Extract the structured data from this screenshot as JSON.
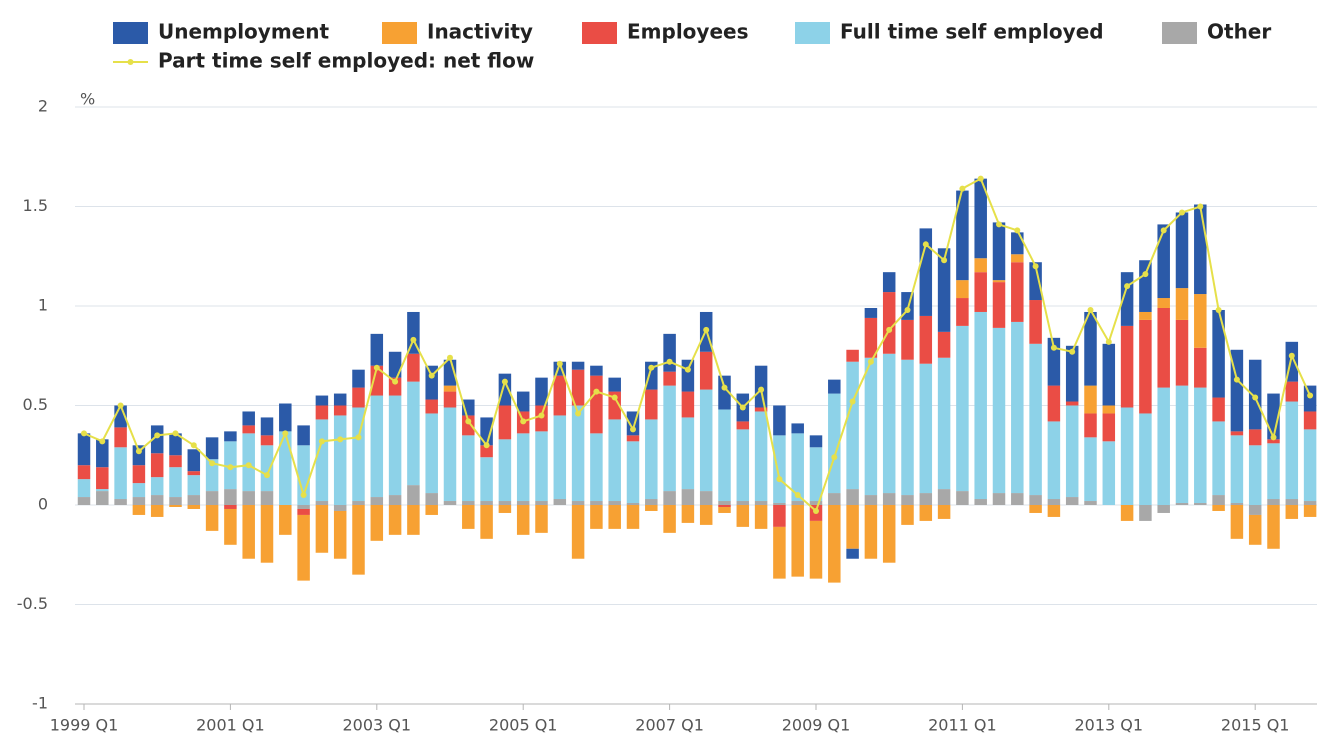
{
  "chart_data": {
    "type": "bar",
    "stacked": true,
    "y_label": "%",
    "categories": [
      "1999 Q1",
      null,
      null,
      null,
      null,
      null,
      null,
      null,
      "2001 Q1",
      null,
      null,
      null,
      null,
      null,
      null,
      null,
      "2003 Q1",
      null,
      null,
      null,
      null,
      null,
      null,
      null,
      "2005 Q1",
      null,
      null,
      null,
      null,
      null,
      null,
      null,
      "2007 Q1",
      null,
      null,
      null,
      null,
      null,
      null,
      null,
      "2009 Q1",
      null,
      null,
      null,
      null,
      null,
      null,
      null,
      "2011 Q1",
      null,
      null,
      null,
      null,
      null,
      null,
      null,
      "2013 Q1",
      null,
      null,
      null,
      null,
      null,
      null,
      null,
      "2015 Q1",
      null,
      null,
      null
    ],
    "ylim": [
      -1,
      2
    ],
    "yticks": [
      -1,
      -0.5,
      0,
      0.5,
      1,
      1.5,
      2
    ],
    "grid": true,
    "series": [
      {
        "name": "Unemployment",
        "color": "#2b5aa8",
        "values": [
          0.16,
          0.14,
          0.11,
          0.1,
          0.14,
          0.11,
          0.11,
          0.11,
          0.05,
          0.07,
          0.09,
          0.14,
          0.1,
          0.05,
          0.06,
          0.09,
          0.16,
          0.13,
          0.21,
          0.17,
          0.13,
          0.08,
          0.14,
          0.16,
          0.1,
          0.14,
          0.07,
          0.04,
          0.05,
          0.07,
          0.12,
          0.14,
          0.19,
          0.16,
          0.2,
          0.17,
          0.14,
          0.21,
          0.15,
          0.05,
          0.06,
          0.07,
          -0.05,
          0.05,
          0.1,
          0.14,
          0.44,
          0.42,
          0.45,
          0.4,
          0.29,
          0.11,
          0.19,
          0.24,
          0.28,
          0.37,
          0.31,
          0.27,
          0.26,
          0.37,
          0.38,
          0.45,
          0.44,
          0.41,
          0.35,
          0.23,
          0.2,
          0.13
        ]
      },
      {
        "name": "Inactivity",
        "color": "#f7a133",
        "values": [
          0,
          0,
          0,
          -0.05,
          -0.06,
          -0.01,
          -0.02,
          -0.13,
          -0.18,
          -0.27,
          -0.29,
          -0.15,
          -0.33,
          -0.24,
          -0.24,
          -0.35,
          -0.18,
          -0.15,
          -0.15,
          -0.05,
          0.03,
          -0.12,
          -0.17,
          -0.04,
          -0.15,
          -0.14,
          0,
          -0.27,
          -0.12,
          -0.12,
          -0.12,
          -0.03,
          -0.14,
          -0.09,
          -0.1,
          -0.03,
          -0.11,
          -0.12,
          -0.26,
          -0.36,
          -0.29,
          -0.39,
          -0.22,
          -0.27,
          -0.29,
          -0.1,
          -0.08,
          -0.07,
          0.09,
          0.07,
          0.01,
          0.04,
          -0.04,
          -0.06,
          0,
          0.14,
          0.04,
          -0.08,
          0.04,
          0.05,
          0.16,
          0.27,
          -0.03,
          -0.17,
          -0.15,
          -0.22,
          -0.07,
          -0.06
        ]
      },
      {
        "name": "Employees",
        "color": "#ea4d45",
        "values": [
          0.07,
          0.11,
          0.1,
          0.09,
          0.12,
          0.06,
          0.02,
          0,
          -0.02,
          0.04,
          0.05,
          0,
          -0.03,
          0.07,
          0.05,
          0.1,
          0.15,
          0.09,
          0.14,
          0.07,
          0.08,
          0.1,
          0.06,
          0.17,
          0.11,
          0.13,
          0.2,
          0.18,
          0.29,
          0.14,
          0.03,
          0.15,
          0.07,
          0.13,
          0.19,
          -0.01,
          0.04,
          0.02,
          -0.11,
          0,
          -0.08,
          0,
          0.06,
          0.2,
          0.31,
          0.2,
          0.24,
          0.13,
          0.14,
          0.2,
          0.23,
          0.3,
          0.22,
          0.18,
          0.02,
          0.12,
          0.14,
          0.41,
          0.47,
          0.4,
          0.33,
          0.2,
          0.12,
          0.02,
          0.08,
          0.02,
          0.1,
          0.09
        ]
      },
      {
        "name": "Full time self employed",
        "color": "#8dd2e8",
        "values": [
          0.09,
          0.01,
          0.26,
          0.07,
          0.09,
          0.15,
          0.1,
          0.16,
          0.24,
          0.29,
          0.23,
          0.37,
          0.3,
          0.41,
          0.45,
          0.47,
          0.51,
          0.5,
          0.52,
          0.4,
          0.47,
          0.33,
          0.22,
          0.31,
          0.34,
          0.35,
          0.42,
          0.48,
          0.34,
          0.41,
          0.31,
          0.4,
          0.53,
          0.36,
          0.51,
          0.46,
          0.36,
          0.45,
          0.34,
          0.34,
          0.27,
          0.5,
          0.64,
          0.69,
          0.7,
          0.68,
          0.65,
          0.66,
          0.83,
          0.94,
          0.83,
          0.86,
          0.76,
          0.39,
          0.46,
          0.32,
          0.32,
          0.49,
          0.46,
          0.59,
          0.59,
          0.58,
          0.37,
          0.34,
          0.3,
          0.28,
          0.49,
          0.36
        ]
      },
      {
        "name": "Other",
        "color": "#a8a8a8",
        "values": [
          0.04,
          0.07,
          0.03,
          0.04,
          0.05,
          0.04,
          0.05,
          0.07,
          0.08,
          0.07,
          0.07,
          0,
          -0.02,
          0.02,
          -0.03,
          0.02,
          0.04,
          0.05,
          0.1,
          0.06,
          0.02,
          0.02,
          0.02,
          0.02,
          0.02,
          0.02,
          0.03,
          0.02,
          0.02,
          0.02,
          0.01,
          0.03,
          0.07,
          0.08,
          0.07,
          0.02,
          0.02,
          0.02,
          0.01,
          0.02,
          0.02,
          0.06,
          0.08,
          0.05,
          0.06,
          0.05,
          0.06,
          0.08,
          0.07,
          0.03,
          0.06,
          0.06,
          0.05,
          0.03,
          0.04,
          0.02,
          0,
          0,
          -0.08,
          -0.04,
          0.01,
          0.01,
          0.05,
          0.01,
          -0.05,
          0.03,
          0.03,
          0.02
        ]
      },
      {
        "name": "Part time self employed: net flow",
        "type": "line",
        "color": "#e6e04a",
        "values": [
          0.36,
          0.32,
          0.5,
          0.27,
          0.35,
          0.36,
          0.3,
          0.21,
          0.19,
          0.2,
          0.15,
          0.36,
          0.05,
          0.32,
          0.33,
          0.34,
          0.69,
          0.62,
          0.83,
          0.65,
          0.74,
          0.42,
          0.3,
          0.62,
          0.42,
          0.45,
          0.71,
          0.46,
          0.57,
          0.54,
          0.38,
          0.69,
          0.72,
          0.68,
          0.88,
          0.59,
          0.49,
          0.58,
          0.13,
          0.05,
          -0.03,
          0.24,
          0.52,
          0.72,
          0.88,
          0.98,
          1.31,
          1.23,
          1.59,
          1.64,
          1.41,
          1.38,
          1.2,
          0.79,
          0.77,
          0.98,
          0.82,
          1.1,
          1.16,
          1.38,
          1.47,
          1.5,
          0.98,
          0.63,
          0.54,
          0.34,
          0.75,
          0.55
        ]
      }
    ]
  }
}
